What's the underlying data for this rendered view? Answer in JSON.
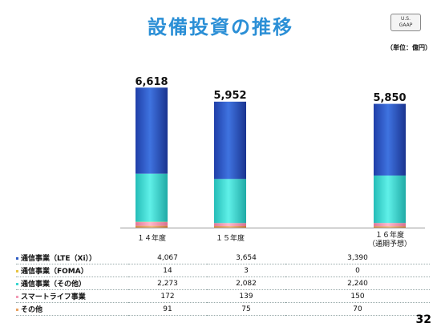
{
  "title": "設備投資の推移",
  "badge": {
    "line1": "U.S.",
    "line2": "GAAP"
  },
  "unit": "（単位：億円）",
  "page_number": "32",
  "colors": {
    "lte": "#2e5cc4",
    "foma": "#e8c340",
    "other_telecom": "#3ad6d0",
    "smart_life": "#f29ab5",
    "others": "#e8a060"
  },
  "chart_data": {
    "type": "bar",
    "stacked": true,
    "title": "設備投資の推移",
    "xlabel": "",
    "ylabel": "",
    "unit": "（単位：億円）",
    "categories": [
      "１４年度",
      "１５年度",
      "１６年度"
    ],
    "category_notes": [
      "",
      "",
      "（通期予想）"
    ],
    "totals": [
      "6,618",
      "5,952",
      "5,850"
    ],
    "series": [
      {
        "name": "通信事業（LTE（Xi））",
        "values": [
          4067,
          3654,
          3390
        ],
        "display": [
          "4,067",
          "3,654",
          "3,390"
        ]
      },
      {
        "name": "通信事業（FOMA）",
        "values": [
          14,
          3,
          0
        ],
        "display": [
          "14",
          "3",
          "0"
        ]
      },
      {
        "name": "通信事業（その他）",
        "values": [
          2273,
          2082,
          2240
        ],
        "display": [
          "2,273",
          "2,082",
          "2,240"
        ]
      },
      {
        "name": "スマートライフ事業",
        "values": [
          172,
          139,
          150
        ],
        "display": [
          "172",
          "139",
          "150"
        ]
      },
      {
        "name": "その他",
        "values": [
          91,
          75,
          70
        ],
        "display": [
          "91",
          "75",
          "70"
        ]
      }
    ]
  }
}
